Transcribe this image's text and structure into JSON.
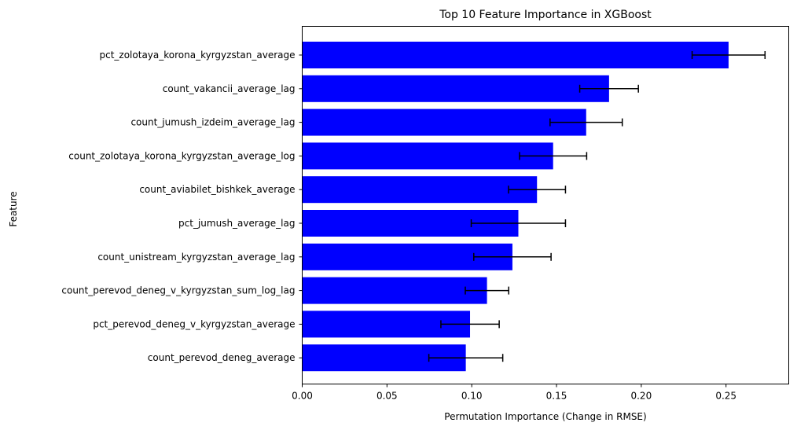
{
  "chart_data": {
    "type": "bar",
    "orientation": "horizontal",
    "title": "Top 10 Feature Importance in XGBoost",
    "xlabel": "Permutation Importance (Change in RMSE)",
    "ylabel": "Feature",
    "xlim": [
      0,
      0.287
    ],
    "xticks": [
      0.0,
      0.05,
      0.1,
      0.15,
      0.2,
      0.25
    ],
    "xtick_labels": [
      "0.00",
      "0.05",
      "0.10",
      "0.15",
      "0.20",
      "0.25"
    ],
    "bar_color": "#0000ff",
    "error_color": "#000000",
    "grid": false,
    "categories": [
      "pct_zolotaya_korona_kyrgyzstan_average",
      "count_vakancii_average_lag",
      "count_jumush_izdeim_average_lag",
      "count_zolotaya_korona_kyrgyzstan_average_log",
      "count_aviabilet_bishkek_average",
      "pct_jumush_average_lag",
      "count_unistream_kyrgyzstan_average_lag",
      "count_perevod_deneg_v_kyrgyzstan_sum_log_lag",
      "pct_perevod_deneg_v_kyrgyzstan_average",
      "count_perevod_deneg_average"
    ],
    "values": [
      0.2515,
      0.181,
      0.1675,
      0.148,
      0.1385,
      0.1275,
      0.124,
      0.109,
      0.099,
      0.0965
    ],
    "errors": [
      0.0215,
      0.0173,
      0.0213,
      0.0198,
      0.0168,
      0.0278,
      0.0228,
      0.0128,
      0.0172,
      0.0218
    ]
  }
}
